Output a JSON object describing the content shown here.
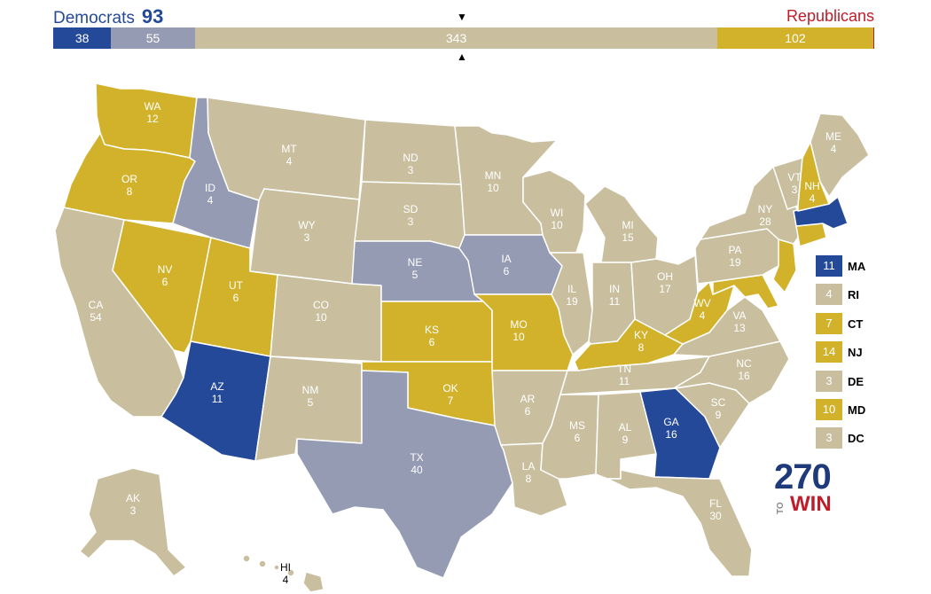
{
  "header": {
    "dem_label": "Democrats",
    "dem_total": "93",
    "rep_label": "Republicans"
  },
  "bar": {
    "segments": [
      {
        "value": "38",
        "color": "#244999",
        "votes": 38
      },
      {
        "value": "55",
        "color": "#949bb3",
        "votes": 55
      },
      {
        "value": "343",
        "color": "#c9bf9f",
        "votes": 343
      },
      {
        "value": "102",
        "color": "#d2b22a",
        "votes": 102
      },
      {
        "value": "",
        "color": "#bf1d29",
        "votes": 0.8
      }
    ],
    "total_votes": 538.8,
    "marker_top": "▼",
    "marker_bottom": "▲"
  },
  "colors": {
    "safe_dem": "#244999",
    "lean_dem": "#949bb3",
    "tossup": "#c9bf9f",
    "lean_rep": "#d2b22a",
    "safe_rep": "#bf1d29"
  },
  "states": {
    "WA": {
      "abbr": "WA",
      "ev": "12"
    },
    "OR": {
      "abbr": "OR",
      "ev": "8"
    },
    "CA": {
      "abbr": "CA",
      "ev": "54"
    },
    "NV": {
      "abbr": "NV",
      "ev": "6"
    },
    "ID": {
      "abbr": "ID",
      "ev": "4"
    },
    "MT": {
      "abbr": "MT",
      "ev": "4"
    },
    "WY": {
      "abbr": "WY",
      "ev": "3"
    },
    "UT": {
      "abbr": "UT",
      "ev": "6"
    },
    "AZ": {
      "abbr": "AZ",
      "ev": "11"
    },
    "CO": {
      "abbr": "CO",
      "ev": "10"
    },
    "NM": {
      "abbr": "NM",
      "ev": "5"
    },
    "ND": {
      "abbr": "ND",
      "ev": "3"
    },
    "SD": {
      "abbr": "SD",
      "ev": "3"
    },
    "NE": {
      "abbr": "NE",
      "ev": "5"
    },
    "KS": {
      "abbr": "KS",
      "ev": "6"
    },
    "OK": {
      "abbr": "OK",
      "ev": "7"
    },
    "TX": {
      "abbr": "TX",
      "ev": "40"
    },
    "MN": {
      "abbr": "MN",
      "ev": "10"
    },
    "IA": {
      "abbr": "IA",
      "ev": "6"
    },
    "MO": {
      "abbr": "MO",
      "ev": "10"
    },
    "AR": {
      "abbr": "AR",
      "ev": "6"
    },
    "LA": {
      "abbr": "LA",
      "ev": "8"
    },
    "WI": {
      "abbr": "WI",
      "ev": "10"
    },
    "IL": {
      "abbr": "IL",
      "ev": "19"
    },
    "MI": {
      "abbr": "MI",
      "ev": "15"
    },
    "IN": {
      "abbr": "IN",
      "ev": "11"
    },
    "OH": {
      "abbr": "OH",
      "ev": "17"
    },
    "KY": {
      "abbr": "KY",
      "ev": "8"
    },
    "TN": {
      "abbr": "TN",
      "ev": "11"
    },
    "MS": {
      "abbr": "MS",
      "ev": "6"
    },
    "AL": {
      "abbr": "AL",
      "ev": "9"
    },
    "GA": {
      "abbr": "GA",
      "ev": "16"
    },
    "FL": {
      "abbr": "FL",
      "ev": "30"
    },
    "SC": {
      "abbr": "SC",
      "ev": "9"
    },
    "NC": {
      "abbr": "NC",
      "ev": "16"
    },
    "VA": {
      "abbr": "VA",
      "ev": "13"
    },
    "WV": {
      "abbr": "WV",
      "ev": "4"
    },
    "PA": {
      "abbr": "PA",
      "ev": "19"
    },
    "NY": {
      "abbr": "NY",
      "ev": "28"
    },
    "VT": {
      "abbr": "VT",
      "ev": "3"
    },
    "NH": {
      "abbr": "NH",
      "ev": "4"
    },
    "ME": {
      "abbr": "ME",
      "ev": "4"
    },
    "AK": {
      "abbr": "AK",
      "ev": "3"
    },
    "HI": {
      "abbr": "HI",
      "ev": "4"
    }
  },
  "legend": [
    {
      "code": "MA",
      "ev": "11",
      "color": "#244999"
    },
    {
      "code": "RI",
      "ev": "4",
      "color": "#c9bf9f"
    },
    {
      "code": "CT",
      "ev": "7",
      "color": "#d2b22a"
    },
    {
      "code": "NJ",
      "ev": "14",
      "color": "#d2b22a"
    },
    {
      "code": "DE",
      "ev": "3",
      "color": "#c9bf9f"
    },
    {
      "code": "MD",
      "ev": "10",
      "color": "#d2b22a"
    },
    {
      "code": "DC",
      "ev": "3",
      "color": "#c9bf9f"
    }
  ],
  "logo": {
    "number": "270",
    "to": "TO",
    "win": "WIN"
  }
}
